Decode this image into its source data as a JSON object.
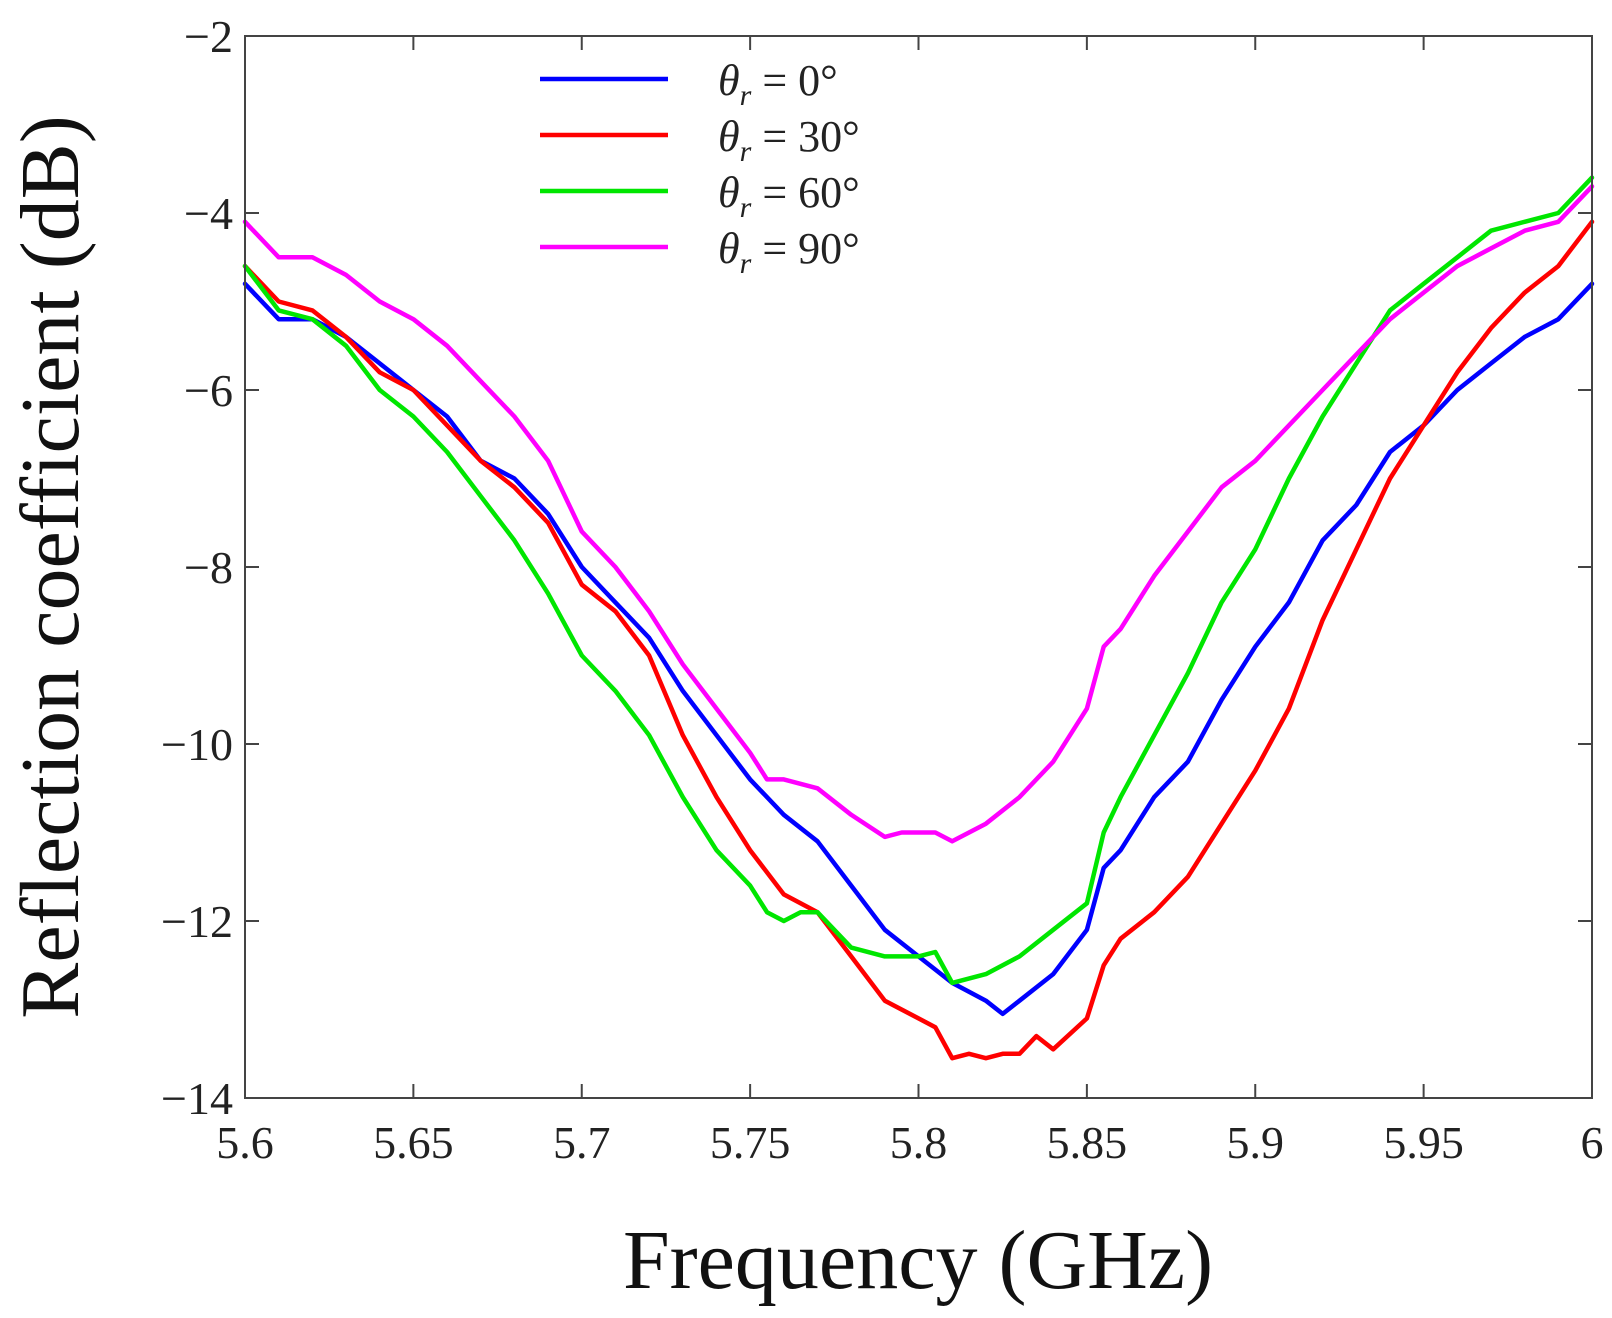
{
  "chart_data": {
    "type": "line",
    "title": "",
    "xlabel": "Frequency (GHz)",
    "ylabel": "Reflection coefficient (dB)",
    "xlim": [
      5.6,
      6.0
    ],
    "ylim": [
      -14,
      -2
    ],
    "xticks": [
      5.6,
      5.65,
      5.7,
      5.75,
      5.8,
      5.85,
      5.9,
      5.95,
      6.0
    ],
    "xtick_labels": [
      "5.6",
      "5.65",
      "5.7",
      "5.75",
      "5.8",
      "5.85",
      "5.9",
      "5.95",
      "6"
    ],
    "yticks": [
      -2,
      -4,
      -6,
      -8,
      -10,
      -12,
      -14
    ],
    "ytick_labels": [
      "−2",
      "−4",
      "−6",
      "−8",
      "−10",
      "−12",
      "−14"
    ],
    "grid": false,
    "legend_position": "top-left",
    "series": [
      {
        "name": "θr = 0°",
        "legend": {
          "symbol": "θ",
          "sub": "r",
          "rest": " = 0°"
        },
        "color": "#0000ff",
        "x": [
          5.6,
          5.61,
          5.62,
          5.63,
          5.64,
          5.65,
          5.66,
          5.67,
          5.68,
          5.69,
          5.7,
          5.71,
          5.72,
          5.73,
          5.74,
          5.75,
          5.76,
          5.77,
          5.78,
          5.79,
          5.8,
          5.81,
          5.815,
          5.82,
          5.825,
          5.83,
          5.84,
          5.85,
          5.855,
          5.86,
          5.87,
          5.88,
          5.89,
          5.9,
          5.91,
          5.92,
          5.93,
          5.94,
          5.95,
          5.96,
          5.97,
          5.98,
          5.99,
          6.0
        ],
        "y": [
          -4.8,
          -5.2,
          -5.2,
          -5.4,
          -5.7,
          -6.0,
          -6.3,
          -6.8,
          -7.0,
          -7.4,
          -8.0,
          -8.4,
          -8.8,
          -9.4,
          -9.9,
          -10.4,
          -10.8,
          -11.1,
          -11.6,
          -12.1,
          -12.4,
          -12.7,
          -12.8,
          -12.9,
          -13.05,
          -12.9,
          -12.6,
          -12.1,
          -11.4,
          -11.2,
          -10.6,
          -10.2,
          -9.5,
          -8.9,
          -8.4,
          -7.7,
          -7.3,
          -6.7,
          -6.4,
          -6.0,
          -5.7,
          -5.4,
          -5.2,
          -4.8
        ]
      },
      {
        "name": "θr = 30°",
        "legend": {
          "symbol": "θ",
          "sub": "r",
          "rest": " = 30°"
        },
        "color": "#ff0000",
        "x": [
          5.6,
          5.61,
          5.62,
          5.63,
          5.64,
          5.65,
          5.66,
          5.67,
          5.68,
          5.69,
          5.7,
          5.71,
          5.72,
          5.73,
          5.74,
          5.75,
          5.76,
          5.77,
          5.78,
          5.79,
          5.8,
          5.805,
          5.81,
          5.815,
          5.82,
          5.825,
          5.83,
          5.835,
          5.84,
          5.85,
          5.855,
          5.86,
          5.87,
          5.88,
          5.89,
          5.9,
          5.91,
          5.92,
          5.93,
          5.94,
          5.95,
          5.96,
          5.97,
          5.98,
          5.99,
          6.0
        ],
        "y": [
          -4.6,
          -5.0,
          -5.1,
          -5.4,
          -5.8,
          -6.0,
          -6.4,
          -6.8,
          -7.1,
          -7.5,
          -8.2,
          -8.5,
          -9.0,
          -9.9,
          -10.6,
          -11.2,
          -11.7,
          -11.9,
          -12.4,
          -12.9,
          -13.1,
          -13.2,
          -13.55,
          -13.5,
          -13.55,
          -13.5,
          -13.5,
          -13.3,
          -13.45,
          -13.1,
          -12.5,
          -12.2,
          -11.9,
          -11.5,
          -10.9,
          -10.3,
          -9.6,
          -8.6,
          -7.8,
          -7.0,
          -6.4,
          -5.8,
          -5.3,
          -4.9,
          -4.6,
          -4.1
        ]
      },
      {
        "name": "θr = 60°",
        "legend": {
          "symbol": "θ",
          "sub": "r",
          "rest": " = 60°"
        },
        "color": "#00e600",
        "x": [
          5.6,
          5.61,
          5.62,
          5.63,
          5.64,
          5.65,
          5.66,
          5.67,
          5.68,
          5.69,
          5.7,
          5.71,
          5.72,
          5.73,
          5.74,
          5.75,
          5.755,
          5.76,
          5.765,
          5.77,
          5.78,
          5.79,
          5.8,
          5.805,
          5.81,
          5.82,
          5.83,
          5.84,
          5.85,
          5.855,
          5.86,
          5.87,
          5.88,
          5.89,
          5.9,
          5.91,
          5.92,
          5.93,
          5.94,
          5.95,
          5.96,
          5.97,
          5.98,
          5.99,
          6.0
        ],
        "y": [
          -4.6,
          -5.1,
          -5.2,
          -5.5,
          -6.0,
          -6.3,
          -6.7,
          -7.2,
          -7.7,
          -8.3,
          -9.0,
          -9.4,
          -9.9,
          -10.6,
          -11.2,
          -11.6,
          -11.9,
          -12.0,
          -11.9,
          -11.9,
          -12.3,
          -12.4,
          -12.4,
          -12.35,
          -12.7,
          -12.6,
          -12.4,
          -12.1,
          -11.8,
          -11.0,
          -10.6,
          -9.9,
          -9.2,
          -8.4,
          -7.8,
          -7.0,
          -6.3,
          -5.7,
          -5.1,
          -4.8,
          -4.5,
          -4.2,
          -4.1,
          -4.0,
          -3.6
        ]
      },
      {
        "name": "θr = 90°",
        "legend": {
          "symbol": "θ",
          "sub": "r",
          "rest": " = 90°"
        },
        "color": "#ff00ff",
        "x": [
          5.6,
          5.61,
          5.62,
          5.63,
          5.64,
          5.65,
          5.66,
          5.67,
          5.68,
          5.69,
          5.7,
          5.71,
          5.72,
          5.73,
          5.74,
          5.75,
          5.755,
          5.76,
          5.77,
          5.78,
          5.79,
          5.795,
          5.8,
          5.805,
          5.81,
          5.82,
          5.83,
          5.84,
          5.85,
          5.855,
          5.86,
          5.87,
          5.88,
          5.89,
          5.9,
          5.91,
          5.92,
          5.93,
          5.94,
          5.95,
          5.96,
          5.97,
          5.98,
          5.99,
          6.0
        ],
        "y": [
          -4.1,
          -4.5,
          -4.5,
          -4.7,
          -5.0,
          -5.2,
          -5.5,
          -5.9,
          -6.3,
          -6.8,
          -7.6,
          -8.0,
          -8.5,
          -9.1,
          -9.6,
          -10.1,
          -10.4,
          -10.4,
          -10.5,
          -10.8,
          -11.05,
          -11.0,
          -11.0,
          -11.0,
          -11.1,
          -10.9,
          -10.6,
          -10.2,
          -9.6,
          -8.9,
          -8.7,
          -8.1,
          -7.6,
          -7.1,
          -6.8,
          -6.4,
          -6.0,
          -5.6,
          -5.2,
          -4.9,
          -4.6,
          -4.4,
          -4.2,
          -4.1,
          -3.7
        ]
      }
    ]
  }
}
